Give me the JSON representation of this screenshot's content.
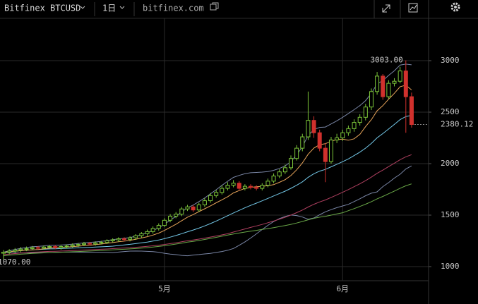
{
  "toolbar": {
    "symbol": "Bitfinex BTCUSD",
    "interval": "1日",
    "site": "bitfinex.com"
  },
  "chart_data": {
    "type": "candlestick",
    "categories": [
      null,
      null,
      null,
      null,
      null,
      null,
      null,
      null,
      null,
      null,
      null,
      null,
      null,
      null,
      null,
      null,
      null,
      null,
      null,
      null,
      null,
      null,
      null,
      null,
      null,
      null,
      null,
      null,
      "5月",
      null,
      null,
      null,
      null,
      null,
      null,
      null,
      null,
      null,
      null,
      null,
      null,
      null,
      null,
      null,
      null,
      null,
      null,
      null,
      null,
      null,
      null,
      null,
      null,
      null,
      null,
      null,
      null,
      null,
      null,
      "6月",
      null,
      null,
      null,
      null,
      null,
      null,
      null,
      null,
      null,
      null,
      null,
      null
    ],
    "open": [
      1130,
      1140,
      1150,
      1160,
      1170,
      1175,
      1185,
      1180,
      1190,
      1195,
      1185,
      1195,
      1200,
      1210,
      1215,
      1225,
      1220,
      1230,
      1235,
      1250,
      1260,
      1270,
      1265,
      1280,
      1300,
      1320,
      1340,
      1370,
      1400,
      1450,
      1490,
      1510,
      1560,
      1580,
      1550,
      1600,
      1640,
      1690,
      1720,
      1760,
      1790,
      1810,
      1760,
      1780,
      1770,
      1760,
      1790,
      1830,
      1880,
      1920,
      1960,
      2050,
      2150,
      2260,
      2420,
      2300,
      2150,
      2020,
      2230,
      2250,
      2300,
      2340,
      2400,
      2450,
      2550,
      2700,
      2850,
      2650,
      2780,
      2800,
      2900,
      2650
    ],
    "high": [
      1160,
      1170,
      1180,
      1190,
      1195,
      1200,
      1200,
      1205,
      1210,
      1210,
      1210,
      1215,
      1225,
      1230,
      1240,
      1240,
      1245,
      1250,
      1265,
      1275,
      1285,
      1285,
      1295,
      1315,
      1335,
      1360,
      1390,
      1420,
      1470,
      1510,
      1530,
      1580,
      1600,
      1600,
      1620,
      1665,
      1715,
      1745,
      1790,
      1820,
      1840,
      1830,
      1800,
      1800,
      1790,
      1810,
      1855,
      1905,
      1945,
      1990,
      2080,
      2180,
      2290,
      2700,
      2460,
      2330,
      2200,
      2260,
      2290,
      2330,
      2370,
      2430,
      2480,
      2580,
      2730,
      2890,
      2870,
      2810,
      2830,
      2940,
      3003,
      2690
    ],
    "low": [
      1070,
      1120,
      1135,
      1140,
      1150,
      1160,
      1165,
      1165,
      1175,
      1170,
      1165,
      1175,
      1185,
      1190,
      1200,
      1205,
      1205,
      1215,
      1220,
      1235,
      1240,
      1245,
      1245,
      1260,
      1280,
      1300,
      1320,
      1350,
      1385,
      1430,
      1470,
      1490,
      1540,
      1530,
      1530,
      1580,
      1620,
      1670,
      1700,
      1740,
      1770,
      1740,
      1740,
      1750,
      1740,
      1740,
      1770,
      1810,
      1860,
      1900,
      1940,
      2030,
      2120,
      2230,
      2250,
      2120,
      1820,
      2000,
      2200,
      2220,
      2270,
      2310,
      2370,
      2420,
      2520,
      2670,
      2620,
      2630,
      2750,
      2780,
      2300,
      2350
    ],
    "close": [
      1140,
      1150,
      1160,
      1170,
      1175,
      1185,
      1180,
      1190,
      1195,
      1185,
      1195,
      1200,
      1210,
      1215,
      1225,
      1220,
      1230,
      1235,
      1250,
      1260,
      1270,
      1265,
      1280,
      1300,
      1320,
      1340,
      1370,
      1400,
      1450,
      1490,
      1510,
      1560,
      1580,
      1550,
      1600,
      1640,
      1690,
      1720,
      1760,
      1790,
      1810,
      1760,
      1780,
      1770,
      1760,
      1790,
      1830,
      1880,
      1920,
      1960,
      2050,
      2150,
      2260,
      2420,
      2300,
      2150,
      2020,
      2230,
      2250,
      2300,
      2340,
      2400,
      2450,
      2550,
      2700,
      2850,
      2650,
      2780,
      2800,
      2900,
      2650,
      2380.12
    ],
    "up_color": "#7cc639",
    "down_color": "#d0312d",
    "ylim": [
      863,
      3411
    ],
    "yticks": [
      1000,
      1500,
      2000,
      2500,
      3000
    ],
    "grid": true,
    "annotations": [
      {
        "value": 3003,
        "label": "3003.00"
      },
      {
        "value": 1070,
        "label": "1070.00"
      }
    ],
    "last_price": 2380.12
  }
}
